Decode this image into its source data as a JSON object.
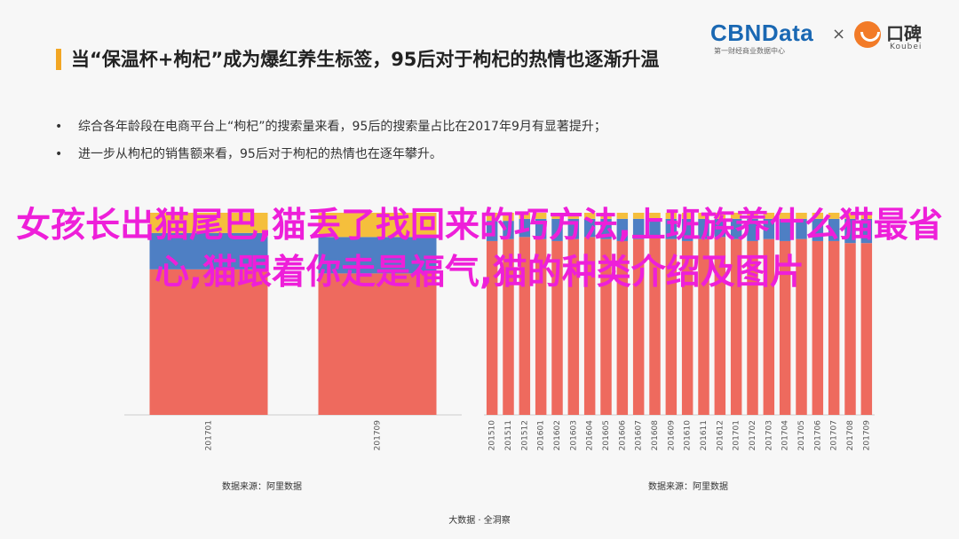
{
  "slide_title": "当“保温杯+枸杞”成为爆红养生标签，95后对于枸杞的热情也逐渐升温",
  "logos": {
    "cbn": "CBNData",
    "cbn_sub": "第一财经商业数据中心",
    "times": "×",
    "koubei": "口碑",
    "koubei_sub": "Koubei"
  },
  "bullets": [
    "综合各年龄段在电商平台上“枸杞”的搜索量来看，95后的搜索量占比在2017年9月有显著提升；",
    "进一步从枸杞的销售额来看，95后对于枸杞的热情也在逐年攀升。"
  ],
  "overlay_text": "女孩长出猫尾巴,猫丢了找回来的巧方法,上班族养什么猫最省心,猫跟着你走是福气,猫的种类介绍及图片",
  "sources": {
    "left": "数据来源：阿里数据",
    "right": "数据来源：阿里数据"
  },
  "footer": "大数据 · 全洞察",
  "colors": {
    "red": "#ee6a5e",
    "blue": "#4e7fc4",
    "yellow": "#f5bf3c",
    "overlay": "#ee1fd9",
    "accent": "#f2a623"
  },
  "chart_data": [
    {
      "type": "bar",
      "stacked": true,
      "categories": [
        "201701",
        "201709"
      ],
      "series": [
        {
          "values": [
            72,
            70
          ]
        },
        {
          "values": [
            18,
            18
          ]
        },
        {
          "values": [
            10,
            12
          ]
        }
      ],
      "ylim": [
        0,
        100
      ]
    },
    {
      "type": "bar",
      "stacked": true,
      "categories": [
        "201510",
        "201511",
        "201512",
        "201601",
        "201602",
        "201603",
        "201604",
        "201605",
        "201606",
        "201607",
        "201608",
        "201609",
        "201610",
        "201611",
        "201612",
        "201701",
        "201702",
        "201703",
        "201704",
        "201705",
        "201706",
        "201707",
        "201708",
        "201709"
      ],
      "series": [
        {
          "values": [
            86,
            87,
            88,
            87,
            86,
            87,
            88,
            87,
            86,
            87,
            88,
            87,
            86,
            87,
            88,
            87,
            86,
            87,
            86,
            87,
            86,
            86,
            85,
            85
          ]
        },
        {
          "values": [
            10,
            9,
            9,
            10,
            11,
            10,
            9,
            10,
            11,
            10,
            9,
            10,
            11,
            10,
            9,
            10,
            11,
            10,
            11,
            10,
            11,
            11,
            12,
            12
          ]
        },
        {
          "values": [
            4,
            4,
            3,
            3,
            3,
            3,
            3,
            3,
            3,
            3,
            3,
            3,
            3,
            3,
            3,
            3,
            3,
            3,
            3,
            3,
            3,
            3,
            3,
            3
          ]
        }
      ],
      "ylim": [
        0,
        100
      ]
    }
  ]
}
